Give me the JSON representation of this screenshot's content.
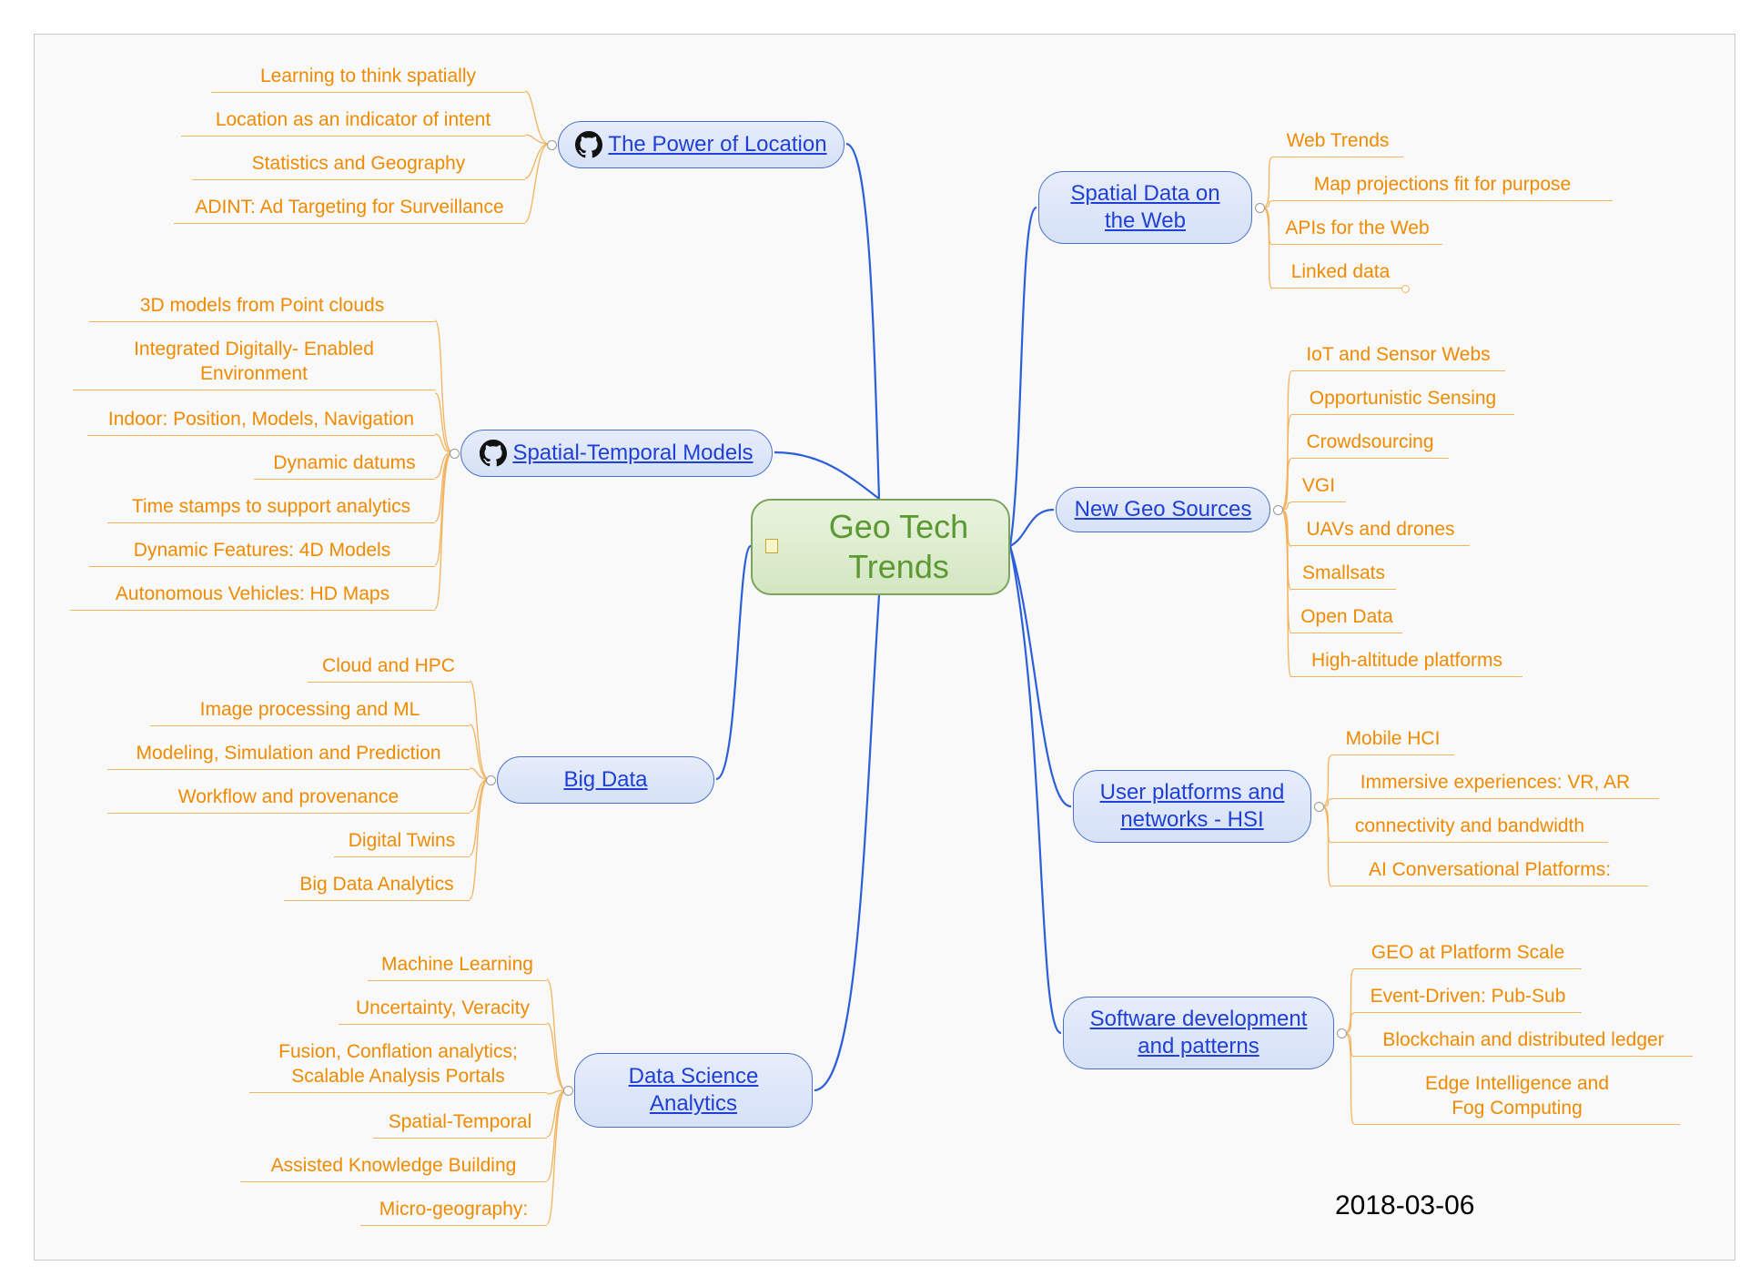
{
  "central": {
    "label": "Geo Tech Trends"
  },
  "branches": {
    "power_of_location": {
      "label": "The Power of Location",
      "has_github_icon": true,
      "children": [
        "Learning to think spatially",
        "Location as an indicator of intent",
        "Statistics and Geography",
        "ADINT: Ad Targeting for Surveillance"
      ]
    },
    "spatial_temporal_models": {
      "label": "Spatial-Temporal Models",
      "has_github_icon": true,
      "children": [
        "3D models from Point clouds",
        "Integrated Digitally- Enabled Environment",
        "Indoor: Position, Models, Navigation",
        "Dynamic datums",
        "Time stamps to support analytics",
        "Dynamic Features: 4D Models",
        "Autonomous Vehicles: HD Maps"
      ]
    },
    "big_data": {
      "label": "Big Data",
      "children": [
        "Cloud and HPC",
        "Image processing and ML",
        "Modeling, Simulation and Prediction",
        "Workflow and provenance",
        "Digital Twins",
        "Big Data Analytics"
      ]
    },
    "data_science": {
      "label": "Data Science Analytics",
      "children": [
        "Machine Learning",
        "Uncertainty, Veracity",
        "Fusion, Conflation analytics; Scalable Analysis Portals",
        "Spatial-Temporal",
        "Assisted Knowledge Building",
        "Micro-geography:"
      ]
    },
    "spatial_web": {
      "label": "Spatial Data on the Web",
      "children": [
        "Web Trends",
        "Map projections fit for purpose",
        "APIs for the Web",
        "Linked data"
      ]
    },
    "new_geo_sources": {
      "label": "New Geo Sources",
      "children": [
        "IoT and Sensor Webs",
        "Opportunistic Sensing",
        "Crowdsourcing",
        "VGI",
        "UAVs and drones",
        "Smallsats",
        "Open Data",
        "High-altitude platforms"
      ]
    },
    "user_platforms": {
      "label": "User platforms and networks - HSI",
      "children": [
        "Mobile HCI",
        "Immersive experiences: VR, AR",
        "connectivity and bandwidth",
        "AI Conversational Platforms:"
      ]
    },
    "software_dev": {
      "label": "Software development and patterns",
      "children": [
        "GEO at Platform Scale",
        "Event-Driven: Pub-Sub",
        "Blockchain and distributed ledger",
        "Edge Intelligence and Fog Computing"
      ]
    }
  },
  "date": "2018-03-06",
  "colors": {
    "link": "#1f3fd6",
    "leaf": "#f08a00",
    "branch_line": "#2b5fd9",
    "leaf_line": "#f2b35c",
    "central_text": "#5b9a33"
  }
}
